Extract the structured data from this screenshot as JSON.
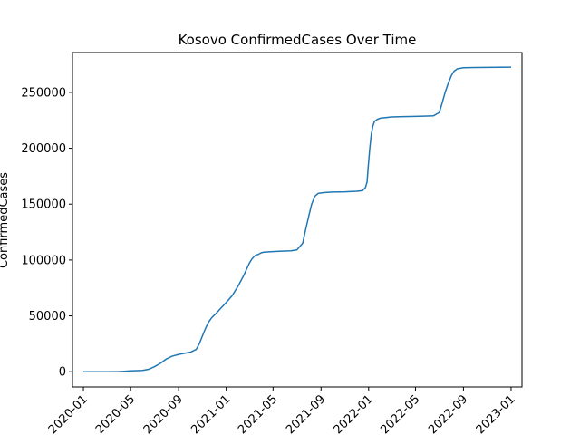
{
  "chart_data": {
    "type": "line",
    "title": "Kosovo  ConfirmedCases Over Time",
    "xlabel": "",
    "ylabel": "ConfirmedCases",
    "xlim": [
      "2019-12-04",
      "2023-01-29"
    ],
    "ylim": [
      -13600,
      285600
    ],
    "grid": false,
    "x_ticks": [
      "2020-01",
      "2020-05",
      "2020-09",
      "2021-01",
      "2021-05",
      "2021-09",
      "2022-01",
      "2022-05",
      "2022-09",
      "2023-01"
    ],
    "y_ticks": [
      0,
      50000,
      100000,
      150000,
      200000,
      250000
    ],
    "y_tick_labels": [
      "0",
      "50000",
      "100000",
      "150000",
      "200000",
      "250000"
    ],
    "colors": {
      "line": "#1f77b4"
    },
    "series": [
      {
        "x": [
          "2020-01-01",
          "2020-03-01",
          "2020-04-01",
          "2020-05-01",
          "2020-06-01",
          "2020-06-16",
          "2020-07-01",
          "2020-07-16",
          "2020-08-01",
          "2020-08-16",
          "2020-09-01",
          "2020-09-16",
          "2020-10-01",
          "2020-10-16",
          "2020-10-24",
          "2020-11-01",
          "2020-11-08",
          "2020-11-16",
          "2020-11-24",
          "2020-12-01",
          "2020-12-08",
          "2020-12-16",
          "2021-01-01",
          "2021-01-16",
          "2021-02-01",
          "2021-02-16",
          "2021-03-01",
          "2021-03-08",
          "2021-03-16",
          "2021-03-24",
          "2021-04-01",
          "2021-04-08",
          "2021-04-16",
          "2021-04-24",
          "2021-05-01",
          "2021-05-16",
          "2021-06-01",
          "2021-06-16",
          "2021-07-01",
          "2021-07-16",
          "2021-07-24",
          "2021-08-01",
          "2021-08-08",
          "2021-08-16",
          "2021-08-24",
          "2021-09-01",
          "2021-09-08",
          "2021-09-16",
          "2021-10-01",
          "2021-11-01",
          "2021-12-01",
          "2021-12-16",
          "2021-12-24",
          "2021-12-28",
          "2022-01-01",
          "2022-01-04",
          "2022-01-08",
          "2022-01-12",
          "2022-01-16",
          "2022-01-24",
          "2022-02-01",
          "2022-02-16",
          "2022-03-01",
          "2022-04-01",
          "2022-05-01",
          "2022-06-01",
          "2022-06-16",
          "2022-07-01",
          "2022-07-08",
          "2022-07-16",
          "2022-07-24",
          "2022-08-01",
          "2022-08-08",
          "2022-08-16",
          "2022-08-24",
          "2022-09-01",
          "2022-09-16",
          "2022-10-01",
          "2022-11-01",
          "2022-12-01",
          "2023-01-01"
        ],
        "values": [
          0,
          0,
          100,
          800,
          1200,
          2200,
          4500,
          7500,
          11500,
          14000,
          15500,
          16500,
          17500,
          20000,
          25000,
          32000,
          38000,
          44000,
          48000,
          50500,
          53000,
          56000,
          62000,
          68000,
          77000,
          87000,
          97000,
          101000,
          104000,
          105000,
          106500,
          107000,
          107200,
          107400,
          107500,
          107800,
          108000,
          108200,
          109000,
          115000,
          128000,
          140000,
          150000,
          157000,
          159500,
          160000,
          160300,
          160500,
          160800,
          161000,
          161500,
          162000,
          165000,
          170000,
          188000,
          200000,
          213000,
          220000,
          224000,
          226000,
          227000,
          227500,
          228000,
          228300,
          228500,
          228800,
          229000,
          232000,
          240000,
          250000,
          258000,
          265000,
          269000,
          271000,
          271500,
          272000,
          272100,
          272200,
          272300,
          272400,
          272500
        ]
      }
    ]
  }
}
